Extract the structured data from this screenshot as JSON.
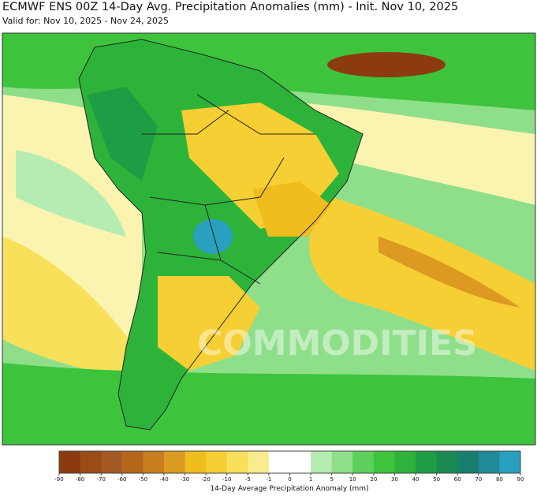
{
  "header": {
    "title": "ECMWF ENS 00Z 14-Day Avg. Precipitation Anomalies (mm) - Init. Nov 10, 2025",
    "subtitle": "Valid for: Nov 10, 2025 - Nov 24, 2025"
  },
  "map": {
    "watermark": "COMMODITIES"
  },
  "colorbar": {
    "label": "14-Day Average Precipitation Anomaly (mm)",
    "ticks": [
      -90,
      -80,
      -70,
      -60,
      -50,
      -40,
      -30,
      -20,
      -10,
      -5,
      -1,
      0,
      1,
      5,
      10,
      20,
      30,
      40,
      50,
      60,
      70,
      80,
      90
    ],
    "colors": [
      "#8c3b10",
      "#9c4a16",
      "#a35a22",
      "#b5651c",
      "#c97d1e",
      "#dc9a22",
      "#efbd1e",
      "#f5cf33",
      "#f8e05a",
      "#f8ec8e",
      "#ffffff",
      "#ffffff",
      "#b5ecb1",
      "#8fdf8a",
      "#5dd05c",
      "#3dc43c",
      "#2db33a",
      "#1e9e44",
      "#1a8a52",
      "#197e70",
      "#1f8a98",
      "#2a9fc0"
    ]
  }
}
